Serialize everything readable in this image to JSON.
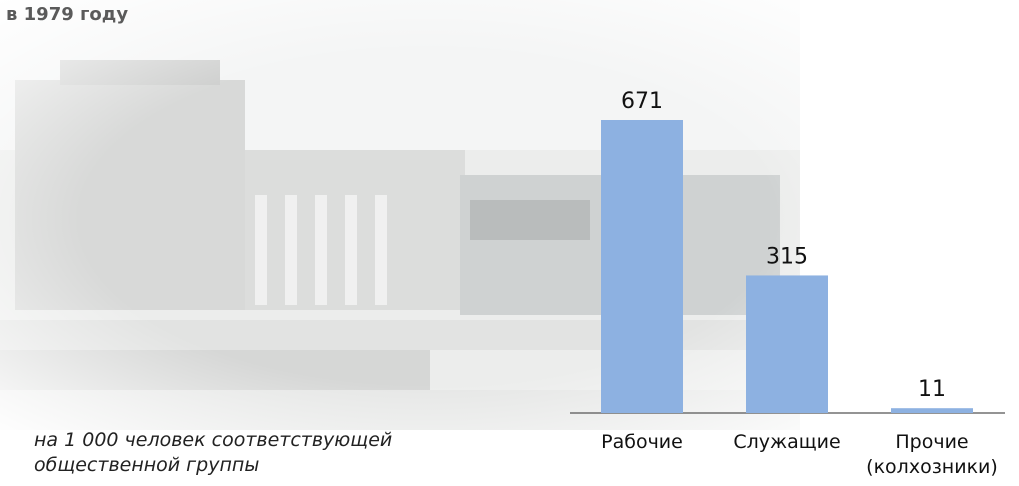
{
  "title": "в 1979 году",
  "note": "на 1 000 человек соответствующей общественной группы",
  "chart_data": {
    "type": "bar",
    "categories": [
      "Рабочие",
      "Служащие",
      "Прочие\n(колхозники)"
    ],
    "values": [
      671,
      315,
      11
    ],
    "color": "#8db1e1"
  }
}
